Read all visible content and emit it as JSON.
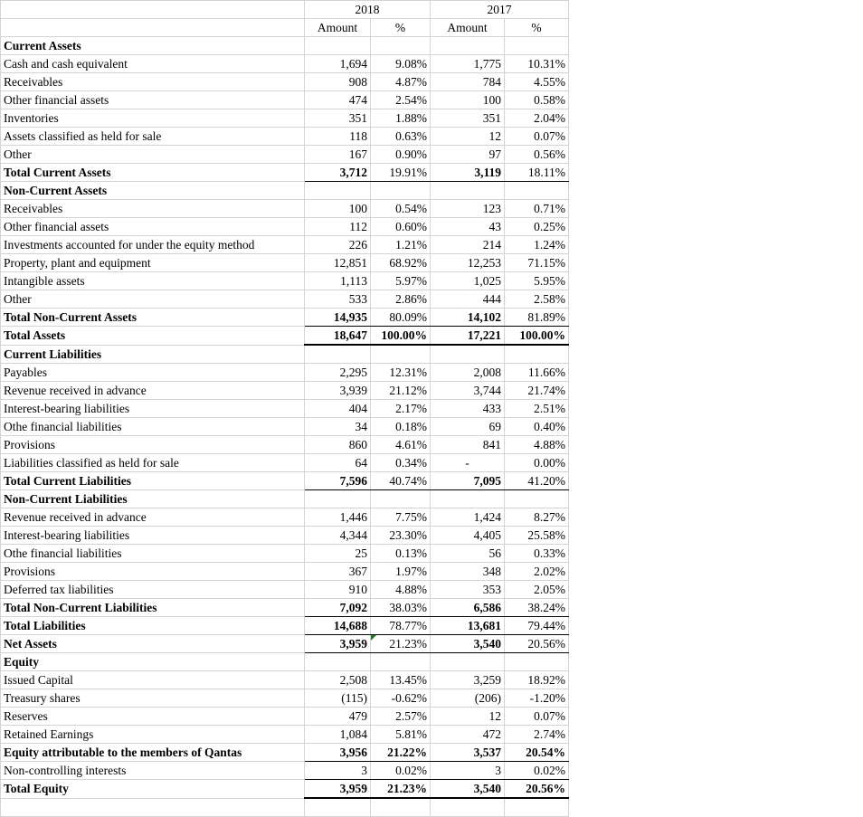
{
  "header": {
    "years": [
      "2018",
      "2017"
    ],
    "col_amount": "Amount",
    "col_pct": "%"
  },
  "sections": {
    "current_assets": {
      "title": "Current Assets",
      "rows": [
        {
          "label": "Cash and cash equivalent",
          "a18": "1,694",
          "p18": "9.08%",
          "a17": "1,775",
          "p17": "10.31%"
        },
        {
          "label": "Receivables",
          "a18": "908",
          "p18": "4.87%",
          "a17": "784",
          "p17": "4.55%"
        },
        {
          "label": "Other financial assets",
          "a18": "474",
          "p18": "2.54%",
          "a17": "100",
          "p17": "0.58%"
        },
        {
          "label": "Inventories",
          "a18": "351",
          "p18": "1.88%",
          "a17": "351",
          "p17": "2.04%"
        },
        {
          "label": "Assets classified as held for sale",
          "a18": "118",
          "p18": "0.63%",
          "a17": "12",
          "p17": "0.07%"
        },
        {
          "label": "Other",
          "a18": "167",
          "p18": "0.90%",
          "a17": "97",
          "p17": "0.56%"
        }
      ],
      "total": {
        "label": "Total Current Assets",
        "a18": "3,712",
        "p18": "19.91%",
        "a17": "3,119",
        "p17": "18.11%"
      }
    },
    "non_current_assets": {
      "title": "Non-Current Assets",
      "rows": [
        {
          "label": "Receivables",
          "a18": "100",
          "p18": "0.54%",
          "a17": "123",
          "p17": "0.71%"
        },
        {
          "label": "Other financial assets",
          "a18": "112",
          "p18": "0.60%",
          "a17": "43",
          "p17": "0.25%"
        },
        {
          "label": "Investments accounted for under the equity method",
          "a18": "226",
          "p18": "1.21%",
          "a17": "214",
          "p17": "1.24%"
        },
        {
          "label": "Property, plant and equipment",
          "a18": "12,851",
          "p18": "68.92%",
          "a17": "12,253",
          "p17": "71.15%"
        },
        {
          "label": "Intangible assets",
          "a18": "1,113",
          "p18": "5.97%",
          "a17": "1,025",
          "p17": "5.95%"
        },
        {
          "label": "Other",
          "a18": "533",
          "p18": "2.86%",
          "a17": "444",
          "p17": "2.58%"
        }
      ],
      "total": {
        "label": "Total Non-Current Assets",
        "a18": "14,935",
        "p18": "80.09%",
        "a17": "14,102",
        "p17": "81.89%"
      }
    },
    "total_assets": {
      "label": "Total Assets",
      "a18": "18,647",
      "p18": "100.00%",
      "a17": "17,221",
      "p17": "100.00%"
    },
    "current_liabilities": {
      "title": "Current Liabilities",
      "rows": [
        {
          "label": "Payables",
          "a18": "2,295",
          "p18": "12.31%",
          "a17": "2,008",
          "p17": "11.66%"
        },
        {
          "label": "Revenue received in advance",
          "a18": "3,939",
          "p18": "21.12%",
          "a17": "3,744",
          "p17": "21.74%"
        },
        {
          "label": "Interest-bearing liabilities",
          "a18": "404",
          "p18": "2.17%",
          "a17": "433",
          "p17": "2.51%"
        },
        {
          "label": "Othe financial liabilities",
          "a18": "34",
          "p18": "0.18%",
          "a17": "69",
          "p17": "0.40%"
        },
        {
          "label": "Provisions",
          "a18": "860",
          "p18": "4.61%",
          "a17": "841",
          "p17": "4.88%"
        },
        {
          "label": "Liabilities classified as held for sale",
          "a18": "64",
          "p18": "0.34%",
          "a17": "-",
          "p17": "0.00%"
        }
      ],
      "total": {
        "label": "Total Current Liabilities",
        "a18": "7,596",
        "p18": "40.74%",
        "a17": "7,095",
        "p17": "41.20%"
      }
    },
    "non_current_liabilities": {
      "title": "Non-Current Liabilities",
      "rows": [
        {
          "label": "Revenue received in advance",
          "a18": "1,446",
          "p18": "7.75%",
          "a17": "1,424",
          "p17": "8.27%"
        },
        {
          "label": "Interest-bearing liabilities",
          "a18": "4,344",
          "p18": "23.30%",
          "a17": "4,405",
          "p17": "25.58%"
        },
        {
          "label": "Othe financial liabilities",
          "a18": "25",
          "p18": "0.13%",
          "a17": "56",
          "p17": "0.33%"
        },
        {
          "label": "Provisions",
          "a18": "367",
          "p18": "1.97%",
          "a17": "348",
          "p17": "2.02%"
        },
        {
          "label": "Deferred tax liabilities",
          "a18": "910",
          "p18": "4.88%",
          "a17": "353",
          "p17": "2.05%"
        }
      ],
      "total": {
        "label": "Total Non-Current Liabilities",
        "a18": "7,092",
        "p18": "38.03%",
        "a17": "6,586",
        "p17": "38.24%"
      }
    },
    "total_liabilities": {
      "label": "Total Liabilities",
      "a18": "14,688",
      "p18": "78.77%",
      "a17": "13,681",
      "p17": "79.44%"
    },
    "net_assets": {
      "label": "Net Assets",
      "a18": "3,959",
      "p18": "21.23%",
      "a17": "3,540",
      "p17": "20.56%"
    },
    "equity": {
      "title": "Equity",
      "rows": [
        {
          "label": "Issued Capital",
          "a18": "2,508",
          "p18": "13.45%",
          "a17": "3,259",
          "p17": "18.92%"
        },
        {
          "label": "Treasury shares",
          "a18": "(115)",
          "p18": "-0.62%",
          "a17": "(206)",
          "p17": "-1.20%"
        },
        {
          "label": "Reserves",
          "a18": "479",
          "p18": "2.57%",
          "a17": "12",
          "p17": "0.07%"
        },
        {
          "label": "Retained Earnings",
          "a18": "1,084",
          "p18": "5.81%",
          "a17": "472",
          "p17": "2.74%"
        }
      ],
      "attributable": {
        "label": "Equity attributable to the members of Qantas",
        "a18": "3,956",
        "p18": "21.22%",
        "a17": "3,537",
        "p17": "20.54%"
      },
      "nci": {
        "label": "Non-controlling interests",
        "a18": "3",
        "p18": "0.02%",
        "a17": "3",
        "p17": "0.02%"
      },
      "total": {
        "label": "Total Equity",
        "a18": "3,959",
        "p18": "21.23%",
        "a17": "3,540",
        "p17": "20.56%"
      }
    }
  }
}
